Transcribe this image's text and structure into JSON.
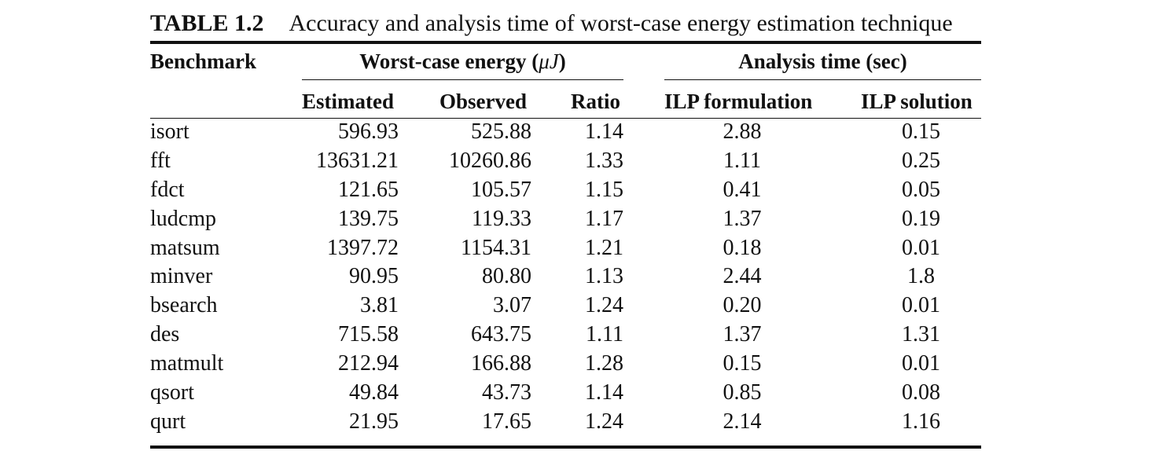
{
  "table": {
    "caption_label": "TABLE 1.2",
    "caption_text": "Accuracy and analysis time of worst-case energy estimation technique",
    "header": {
      "benchmark": "Benchmark",
      "group_energy_prefix": "Worst-case energy (",
      "group_energy_unit": "μJ",
      "group_energy_suffix": ")",
      "group_time": "Analysis time (sec)",
      "estimated": "Estimated",
      "observed": "Observed",
      "ratio": "Ratio",
      "ilp_formulation": "ILP formulation",
      "ilp_solution": "ILP solution"
    },
    "rows": [
      {
        "benchmark": "isort",
        "estimated": "596.93",
        "observed": "525.88",
        "ratio": "1.14",
        "ilp_formulation": "2.88",
        "ilp_solution": "0.15"
      },
      {
        "benchmark": "fft",
        "estimated": "13631.21",
        "observed": "10260.86",
        "ratio": "1.33",
        "ilp_formulation": "1.11",
        "ilp_solution": "0.25"
      },
      {
        "benchmark": "fdct",
        "estimated": "121.65",
        "observed": "105.57",
        "ratio": "1.15",
        "ilp_formulation": "0.41",
        "ilp_solution": "0.05"
      },
      {
        "benchmark": "ludcmp",
        "estimated": "139.75",
        "observed": "119.33",
        "ratio": "1.17",
        "ilp_formulation": "1.37",
        "ilp_solution": "0.19"
      },
      {
        "benchmark": "matsum",
        "estimated": "1397.72",
        "observed": "1154.31",
        "ratio": "1.21",
        "ilp_formulation": "0.18",
        "ilp_solution": "0.01"
      },
      {
        "benchmark": "minver",
        "estimated": "90.95",
        "observed": "80.80",
        "ratio": "1.13",
        "ilp_formulation": "2.44",
        "ilp_solution": "1.8"
      },
      {
        "benchmark": "bsearch",
        "estimated": "3.81",
        "observed": "3.07",
        "ratio": "1.24",
        "ilp_formulation": "0.20",
        "ilp_solution": "0.01"
      },
      {
        "benchmark": "des",
        "estimated": "715.58",
        "observed": "643.75",
        "ratio": "1.11",
        "ilp_formulation": "1.37",
        "ilp_solution": "1.31"
      },
      {
        "benchmark": "matmult",
        "estimated": "212.94",
        "observed": "166.88",
        "ratio": "1.28",
        "ilp_formulation": "0.15",
        "ilp_solution": "0.01"
      },
      {
        "benchmark": "qsort",
        "estimated": "49.84",
        "observed": "43.73",
        "ratio": "1.14",
        "ilp_formulation": "0.85",
        "ilp_solution": "0.08"
      },
      {
        "benchmark": "qurt",
        "estimated": "21.95",
        "observed": "17.65",
        "ratio": "1.24",
        "ilp_formulation": "2.14",
        "ilp_solution": "1.16"
      }
    ]
  }
}
